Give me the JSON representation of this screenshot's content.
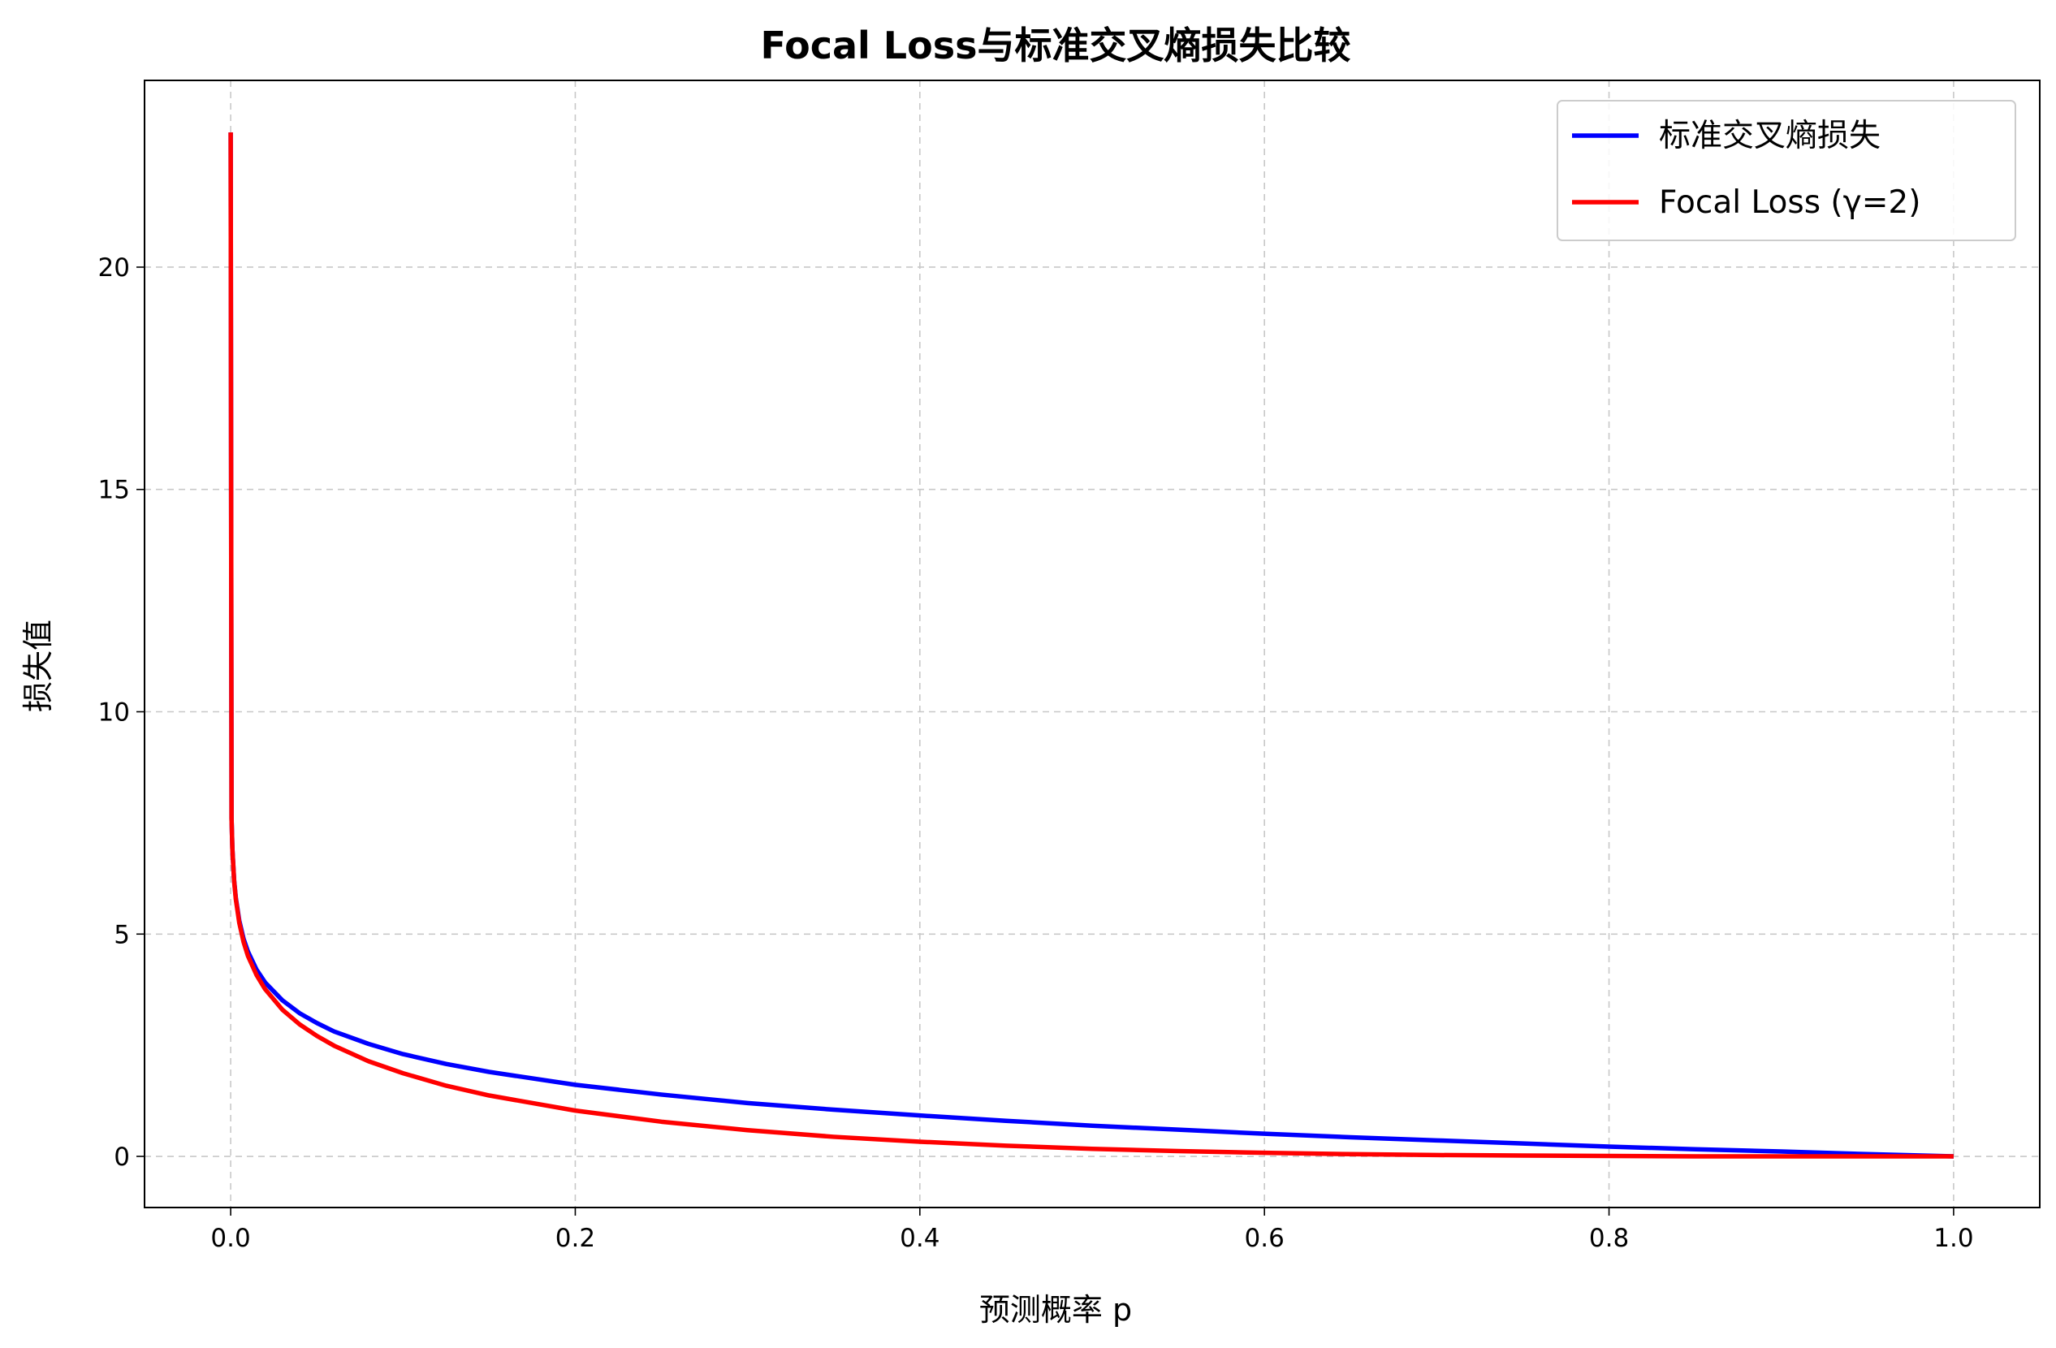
{
  "chart_data": {
    "type": "line",
    "title": "Focal Loss与标准交叉熵损失比较",
    "xlabel": "预测概率 p",
    "ylabel": "损失值",
    "xlim": [
      -0.05,
      1.05
    ],
    "ylim": [
      -1.15,
      24.2
    ],
    "x_ticks": [
      "0.0",
      "0.2",
      "0.4",
      "0.6",
      "0.8",
      "1.0"
    ],
    "y_ticks": [
      "0",
      "5",
      "10",
      "15",
      "20"
    ],
    "grid": true,
    "legend_position": "top-right",
    "series": [
      {
        "name": "标准交叉熵损失",
        "color": "#0000ff",
        "x": [
          1e-10,
          0.0005,
          0.001,
          0.002,
          0.003,
          0.005,
          0.0075,
          0.01,
          0.015,
          0.02,
          0.03,
          0.04,
          0.05,
          0.06,
          0.08,
          0.1,
          0.125,
          0.15,
          0.2,
          0.25,
          0.3,
          0.35,
          0.4,
          0.45,
          0.5,
          0.55,
          0.6,
          0.65,
          0.7,
          0.75,
          0.8,
          0.85,
          0.9,
          0.95,
          1.0
        ],
        "y": [
          23.03,
          7.6,
          6.91,
          6.21,
          5.81,
          5.3,
          4.89,
          4.61,
          4.2,
          3.91,
          3.51,
          3.22,
          3.0,
          2.81,
          2.53,
          2.3,
          2.08,
          1.9,
          1.61,
          1.39,
          1.2,
          1.05,
          0.92,
          0.8,
          0.69,
          0.6,
          0.51,
          0.43,
          0.36,
          0.29,
          0.22,
          0.16,
          0.11,
          0.05,
          0.0
        ]
      },
      {
        "name": "Focal Loss (γ=2)",
        "color": "#ff0000",
        "x": [
          1e-10,
          0.0005,
          0.001,
          0.002,
          0.003,
          0.005,
          0.0075,
          0.01,
          0.015,
          0.02,
          0.03,
          0.04,
          0.05,
          0.06,
          0.08,
          0.1,
          0.125,
          0.15,
          0.2,
          0.25,
          0.3,
          0.35,
          0.4,
          0.45,
          0.5,
          0.55,
          0.6,
          0.65,
          0.7,
          0.75,
          0.8,
          0.85,
          0.9,
          0.95,
          1.0
        ],
        "y": [
          23.03,
          7.59,
          6.9,
          6.19,
          5.78,
          5.25,
          4.82,
          4.51,
          4.08,
          3.76,
          3.3,
          2.97,
          2.71,
          2.49,
          2.14,
          1.87,
          1.59,
          1.37,
          1.03,
          0.78,
          0.59,
          0.44,
          0.33,
          0.24,
          0.17,
          0.12,
          0.08,
          0.05,
          0.03,
          0.02,
          0.01,
          0.0,
          0.0,
          0.0,
          0.0
        ]
      }
    ]
  }
}
